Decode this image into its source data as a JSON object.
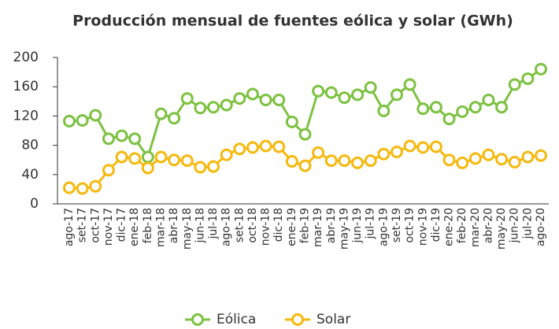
{
  "chart_data": {
    "type": "line",
    "title": "Producción mensual de fuentes eólica y solar (GWh)",
    "categories": [
      "ago-17",
      "set-17",
      "oct-17",
      "nov-17",
      "dic-17",
      "ene-18",
      "feb-18",
      "mar-18",
      "abr-18",
      "may-18",
      "jun-18",
      "jul-18",
      "ago-18",
      "set-18",
      "oct-18",
      "nov-18",
      "dic-18",
      "ene-19",
      "feb-19",
      "mar-19",
      "abr-19",
      "may-19",
      "jun-19",
      "jul-19",
      "ago-19",
      "set-19",
      "oct-19",
      "nov-19",
      "dic-19",
      "ene-20",
      "feb-20",
      "mar-20",
      "abr-20",
      "may-20",
      "jun-20",
      "jul-20",
      "ago-20"
    ],
    "series": [
      {
        "name": "Eólica",
        "color": "#7dc242",
        "values": [
          113,
          114,
          121,
          89,
          93,
          89,
          64,
          123,
          117,
          144,
          131,
          132,
          135,
          144,
          150,
          142,
          142,
          112,
          95,
          154,
          152,
          145,
          149,
          159,
          127,
          149,
          163,
          130,
          132,
          116,
          126,
          132,
          142,
          132,
          163,
          171,
          184
        ]
      },
      {
        "name": "Solar",
        "color": "#f6b90f",
        "values": [
          22,
          21,
          24,
          46,
          64,
          62,
          49,
          64,
          60,
          59,
          50,
          51,
          67,
          75,
          77,
          79,
          78,
          58,
          52,
          70,
          59,
          59,
          56,
          59,
          68,
          71,
          79,
          77,
          78,
          60,
          56,
          62,
          67,
          61,
          57,
          64,
          66
        ]
      }
    ],
    "ylim": [
      0,
      200
    ],
    "yticks": [
      0,
      40,
      80,
      120,
      160,
      200
    ],
    "legend": "bottom"
  }
}
